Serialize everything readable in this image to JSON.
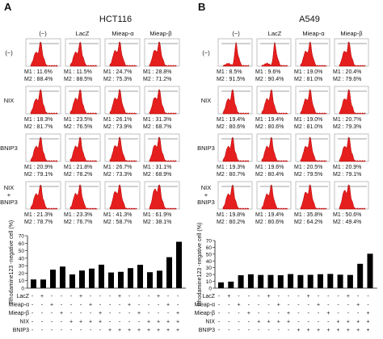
{
  "panels": [
    {
      "letter": "A",
      "title": "HCT116",
      "col_headers": [
        "(−)",
        "LacZ",
        "Mieap-α",
        "Mieap-β"
      ],
      "row_headers": [
        [
          "(−)"
        ],
        [
          "NIX"
        ],
        [
          "BNIP3"
        ],
        [
          "NIX",
          "+",
          "BNIP3"
        ]
      ],
      "cells": [
        [
          [
            "M1 : 11.6%",
            "M2 : 88.4%"
          ],
          [
            "M1 : 11.5%",
            "M2 : 88.5%"
          ],
          [
            "M1 : 24.7%",
            "M2 : 75.3%"
          ],
          [
            "M1 : 28.8%",
            "M2 : 71.2%"
          ]
        ],
        [
          [
            "M1 : 18.3%",
            "M2 : 81.7%"
          ],
          [
            "M1 : 23.5%",
            "M2 : 76.5%"
          ],
          [
            "M1 : 26.1%",
            "M2 : 73.9%"
          ],
          [
            "M1 : 31.3%",
            "M2 : 68.7%"
          ]
        ],
        [
          [
            "M1 : 20.9%",
            "M2 : 79.1%"
          ],
          [
            "M1 : 21.8%",
            "M2 : 78.2%"
          ],
          [
            "M1 : 26.7%",
            "M2 : 73.3%"
          ],
          [
            "M1 : 31.1%",
            "M2 : 68.9%"
          ]
        ],
        [
          [
            "M1 : 21.3%",
            "M2 : 78.7%"
          ],
          [
            "M1 : 23.3%",
            "M2 : 76.7%"
          ],
          [
            "M1 : 41.3%",
            "M2 : 58.7%"
          ],
          [
            "M1 : 61.9%",
            "M2 : 38.1%"
          ]
        ]
      ]
    },
    {
      "letter": "B",
      "title": "A549",
      "col_headers": [
        "(−)",
        "LacZ",
        "Mieap-α",
        "Mieap-β"
      ],
      "row_headers": [
        [
          "(−)"
        ],
        [
          "NIX"
        ],
        [
          "BNIP3"
        ],
        [
          "NIX",
          "+",
          "BNIP3"
        ]
      ],
      "cells": [
        [
          [
            "M1 : 8.5%",
            "M2 : 91.5%"
          ],
          [
            "M1 : 9.6%",
            "M2 : 90.4%"
          ],
          [
            "M1 : 19.0%",
            "M2 : 81.0%"
          ],
          [
            "M1 : 20.4%",
            "M2 : 79.6%"
          ]
        ],
        [
          [
            "M1 : 19.4%",
            "M2 : 80.6%"
          ],
          [
            "M1 : 19.4%",
            "M2 : 80.6%"
          ],
          [
            "M1 : 19.0%",
            "M2 : 81.0%"
          ],
          [
            "M1 : 20.7%",
            "M2 : 79.3%"
          ]
        ],
        [
          [
            "M1 : 19.3%",
            "M2 : 80.7%"
          ],
          [
            "M1 : 19.6%",
            "M2 : 80.4%"
          ],
          [
            "M1 : 20.5%",
            "M2 : 79.5%"
          ],
          [
            "M1 : 20.9%",
            "M2 : 79.1%"
          ]
        ],
        [
          [
            "M1 : 19.8%",
            "M2 : 80.2%"
          ],
          [
            "M1 : 19.4%",
            "M2 : 80.6%"
          ],
          [
            "M1 : 35.8%",
            "M2 : 64.2%"
          ],
          [
            "M1 : 50.6%",
            "M2 : 49.4%"
          ]
        ]
      ]
    }
  ],
  "chart_data": [
    {
      "type": "bar",
      "panel": "A",
      "title": "",
      "xlabel": "",
      "ylabel": "Rhodamine123 -negative cell (%)",
      "ylim": [
        0,
        70
      ],
      "yticks": [
        0,
        10,
        20,
        30,
        40,
        50,
        60,
        70
      ],
      "values": [
        11.6,
        11.5,
        24.7,
        28.8,
        18.3,
        23.5,
        26.1,
        31.3,
        20.9,
        21.8,
        26.7,
        31.1,
        21.3,
        23.3,
        41.3,
        61.9
      ],
      "color": "#000000"
    },
    {
      "type": "bar",
      "panel": "B",
      "title": "",
      "xlabel": "",
      "ylabel": "Rhodamine123 -negative cell (%)",
      "ylim": [
        0,
        70
      ],
      "yticks": [
        0,
        10,
        20,
        30,
        40,
        50,
        60,
        70
      ],
      "values": [
        8.5,
        9.6,
        19.0,
        20.4,
        19.4,
        19.4,
        19.0,
        20.7,
        19.3,
        19.6,
        20.5,
        20.9,
        19.8,
        19.4,
        35.8,
        50.6
      ],
      "color": "#000000"
    }
  ],
  "conditions": {
    "labels": [
      "LacZ",
      "Mieap-α",
      "Mieap-β",
      "NIX",
      "BNIP3"
    ],
    "rows": [
      [
        "-",
        "+",
        "-",
        "-",
        "-",
        "+",
        "-",
        "-",
        "-",
        "+",
        "-",
        "-",
        "-",
        "+",
        "-",
        "-"
      ],
      [
        "-",
        "-",
        "+",
        "-",
        "-",
        "-",
        "+",
        "-",
        "-",
        "-",
        "+",
        "-",
        "-",
        "-",
        "+",
        "-"
      ],
      [
        "-",
        "-",
        "-",
        "+",
        "-",
        "-",
        "-",
        "+",
        "-",
        "-",
        "-",
        "+",
        "-",
        "-",
        "-",
        "+"
      ],
      [
        "-",
        "-",
        "-",
        "-",
        "+",
        "+",
        "+",
        "+",
        "-",
        "-",
        "-",
        "-",
        "+",
        "+",
        "+",
        "+"
      ],
      [
        "-",
        "-",
        "-",
        "-",
        "-",
        "-",
        "-",
        "-",
        "+",
        "+",
        "+",
        "+",
        "+",
        "+",
        "+",
        "+"
      ]
    ]
  },
  "colors": {
    "histogram_fill": "#e51e1e",
    "histogram_line": "#b30000",
    "bars": "#000000",
    "text": "#111111"
  }
}
